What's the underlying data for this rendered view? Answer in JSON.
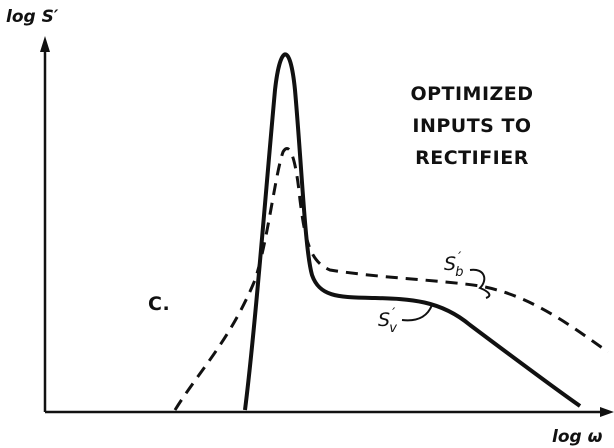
{
  "y_axis_label": {
    "text": "log S",
    "prime": "′"
  },
  "x_axis_label": "log ω",
  "title": {
    "lines": [
      "OPTIMIZED",
      "INPUTS TO",
      "RECTIFIER"
    ]
  },
  "panel_label": "C.",
  "curve_labels": [
    {
      "text": "S",
      "prime": "′",
      "subscript": "b"
    },
    {
      "text": "S",
      "prime": "′",
      "subscript": "v"
    }
  ]
}
